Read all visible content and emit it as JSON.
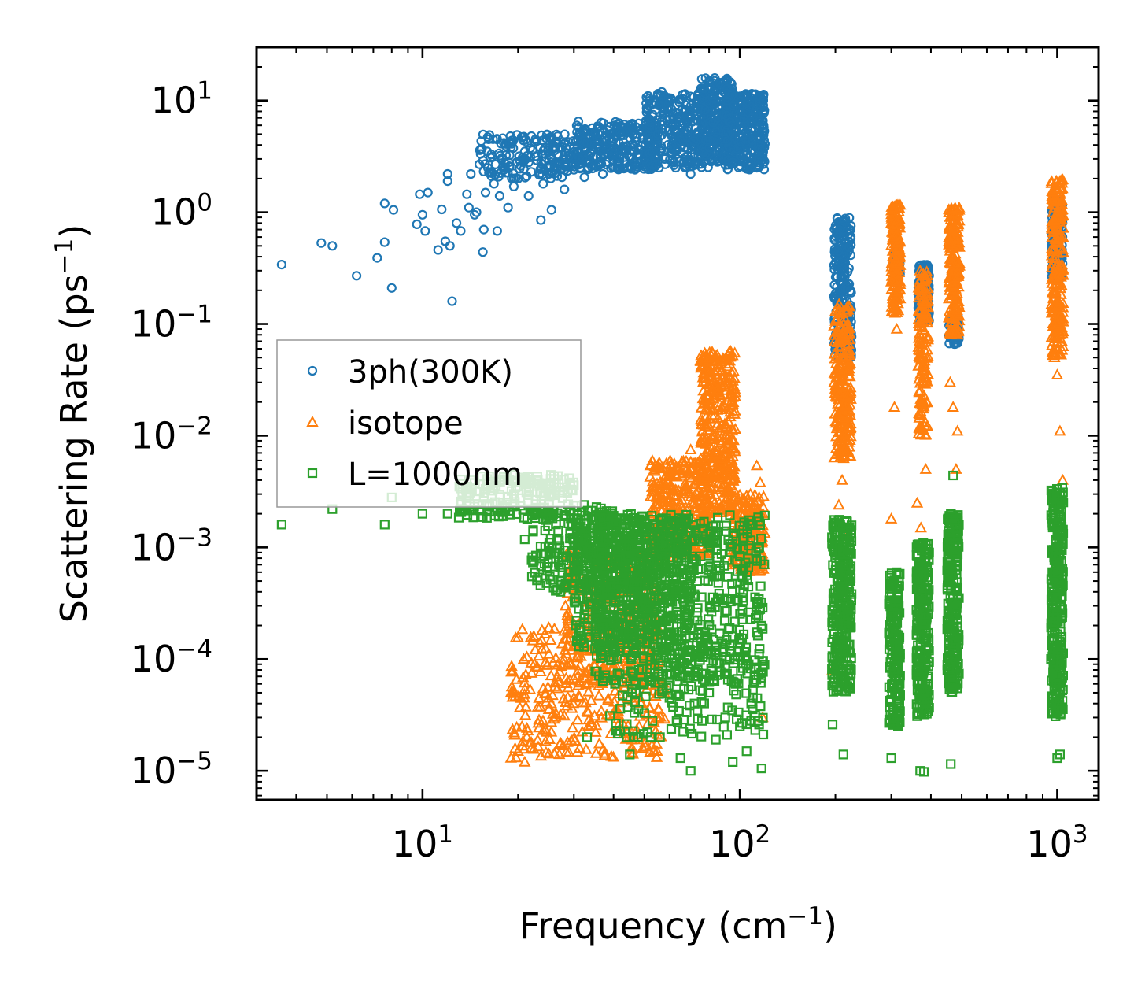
{
  "chart_data": {
    "type": "scatter",
    "title": "",
    "xlabel": "Frequency (cm",
    "xlabel_sup": "−1",
    "xlabel_end": ")",
    "ylabel": "Scattering Rate (ps",
    "ylabel_sup": "−1",
    "ylabel_end": ")",
    "xscale": "log",
    "yscale": "log",
    "xlim": [
      3.0,
      1350
    ],
    "ylim": [
      5.5e-06,
      30
    ],
    "x_ticks": [
      {
        "value": 10,
        "base": "10",
        "exp": "1"
      },
      {
        "value": 100,
        "base": "10",
        "exp": "2"
      },
      {
        "value": 1000,
        "base": "10",
        "exp": "3"
      }
    ],
    "y_ticks": [
      {
        "value": 10,
        "base": "10",
        "exp": "1"
      },
      {
        "value": 1,
        "base": "10",
        "exp": "0"
      },
      {
        "value": 0.1,
        "base": "10",
        "exp": "−1"
      },
      {
        "value": 0.01,
        "base": "10",
        "exp": "−2"
      },
      {
        "value": 0.001,
        "base": "10",
        "exp": "−3"
      },
      {
        "value": 0.0001,
        "base": "10",
        "exp": "−4"
      },
      {
        "value": 1e-05,
        "base": "10",
        "exp": "−5"
      }
    ],
    "legend_position": "center-left",
    "series": [
      {
        "name": "3ph(300K)",
        "marker": "circle",
        "color": "#1f77b4",
        "points": [
          [
            3.6,
            0.34
          ],
          [
            4.8,
            0.53
          ],
          [
            5.2,
            0.5
          ],
          [
            6.2,
            0.27
          ],
          [
            7.2,
            0.39
          ],
          [
            7.6,
            0.54
          ],
          [
            7.6,
            1.2
          ],
          [
            8.0,
            0.21
          ],
          [
            8.1,
            1.05
          ],
          [
            9.6,
            0.78
          ],
          [
            9.8,
            1.45
          ],
          [
            10.0,
            0.95
          ],
          [
            10.2,
            0.68
          ],
          [
            10.4,
            1.5
          ],
          [
            11.2,
            0.46
          ],
          [
            11.5,
            1.06
          ],
          [
            11.8,
            0.55
          ],
          [
            12.0,
            2.2
          ],
          [
            12.0,
            1.9
          ],
          [
            12.2,
            0.5
          ],
          [
            12.4,
            0.16
          ],
          [
            12.8,
            0.8
          ],
          [
            13.2,
            0.68
          ],
          [
            13.8,
            1.45
          ],
          [
            14.0,
            1.1
          ],
          [
            14.2,
            2.2
          ],
          [
            14.6,
            0.95
          ],
          [
            14.8,
            1.0
          ],
          [
            15.5,
            0.44
          ],
          [
            15.6,
            0.7
          ],
          [
            15.8,
            1.5
          ],
          [
            16.0,
            3.5
          ],
          [
            16.5,
            2.1
          ],
          [
            16.8,
            1.8
          ],
          [
            17.2,
            0.68
          ],
          [
            17.5,
            1.4
          ],
          [
            17.8,
            3.0
          ],
          [
            18.2,
            2.5
          ],
          [
            18.6,
            1.1
          ],
          [
            19.0,
            3.8
          ],
          [
            19.4,
            1.7
          ],
          [
            20.0,
            2.0
          ],
          [
            20.4,
            2.6
          ],
          [
            21.0,
            3.5
          ],
          [
            21.6,
            1.4
          ],
          [
            22.0,
            2.3
          ],
          [
            23.0,
            2.9
          ],
          [
            23.6,
            0.85
          ],
          [
            24.0,
            1.8
          ],
          [
            24.4,
            3.3
          ],
          [
            25.0,
            2.2
          ],
          [
            25.5,
            1.05
          ],
          [
            26.0,
            3.9
          ],
          [
            27.0,
            2.8
          ],
          [
            28.0,
            1.6
          ],
          [
            29.0,
            3.2
          ],
          [
            30.0,
            2.4
          ],
          [
            31.0,
            6.5
          ],
          [
            32.0,
            3.1
          ],
          [
            33.0,
            4.2
          ],
          [
            34.0,
            2.6
          ],
          [
            35.0,
            5.0
          ],
          [
            36.0,
            3.8
          ],
          [
            37.0,
            2.2
          ],
          [
            38.0,
            4.4
          ],
          [
            40.0,
            3.3
          ],
          [
            42.0,
            5.2
          ],
          [
            44.0,
            2.5
          ],
          [
            46.0,
            4.1
          ],
          [
            48.0,
            3.6
          ],
          [
            50.0,
            2.8
          ],
          [
            52.0,
            6.0
          ],
          [
            55.0,
            4.0
          ],
          [
            58.0,
            3.0
          ],
          [
            60.0,
            5.5
          ],
          [
            63.0,
            7.8
          ],
          [
            66.0,
            4.6
          ],
          [
            70.0,
            2.2
          ],
          [
            73.0,
            9.5
          ],
          [
            76.0,
            6.2
          ],
          [
            80.0,
            3.8
          ],
          [
            85.0,
            7.0
          ],
          [
            90.0,
            4.5
          ],
          [
            95.0,
            2.8
          ],
          [
            100.0,
            8.5
          ],
          [
            105.0,
            5.2
          ],
          [
            110.0,
            9.0
          ],
          [
            115.0,
            6.5
          ],
          [
            118.0,
            8.0
          ]
        ],
        "bands": [
          {
            "x": [
              15.0,
              33.0
            ],
            "y": [
              2.0,
              5.0
            ],
            "n": 180
          },
          {
            "x": [
              30.0,
              55.0
            ],
            "y": [
              2.4,
              6.5
            ],
            "n": 260
          },
          {
            "x": [
              50.0,
              80.0
            ],
            "y": [
              2.5,
              12.0
            ],
            "n": 320
          },
          {
            "x": [
              75.0,
              95.0
            ],
            "y": [
              2.8,
              16.0
            ],
            "n": 260
          },
          {
            "x": [
              90.0,
              120.0
            ],
            "y": [
              2.4,
              11.5
            ],
            "n": 300
          },
          {
            "x": [
              198.0,
              225.0
            ],
            "y": [
              0.05,
              0.9
            ],
            "n": 220
          },
          {
            "x": [
              305.0,
              320.0
            ],
            "y": [
              0.25,
              0.45
            ],
            "n": 70
          },
          {
            "x": [
              365.0,
              395.0
            ],
            "y": [
              0.1,
              0.34
            ],
            "n": 160
          },
          {
            "x": [
              455.0,
              490.0
            ],
            "y": [
              0.065,
              0.12
            ],
            "n": 60
          },
          {
            "x": [
              960.0,
              1040.0
            ],
            "y": [
              0.25,
              1.3
            ],
            "n": 160
          }
        ]
      },
      {
        "name": "isotope",
        "marker": "triangle",
        "color": "#ff7f0e",
        "points": [
          [
            19.0,
            1.3e-05
          ],
          [
            20.0,
            1.5e-05
          ],
          [
            21.0,
            1.2e-05
          ],
          [
            22.0,
            1.8e-05
          ],
          [
            24.0,
            2.3e-05
          ],
          [
            26.0,
            2.9e-05
          ],
          [
            28.0,
            3.1e-05
          ],
          [
            30.0,
            4.5e-05
          ],
          [
            33.0,
            3.4e-05
          ],
          [
            36.0,
            4.7e-05
          ],
          [
            41.0,
            3.5e-05
          ],
          [
            46.0,
            4.2e-05
          ],
          [
            52.0,
            3.6e-05
          ],
          [
            58.0,
            2.9e-05
          ],
          [
            54.0,
            0.0048
          ],
          [
            58.0,
            0.0038
          ],
          [
            63.0,
            0.0049
          ],
          [
            70.0,
            0.0075
          ],
          [
            77.0,
            0.0125
          ],
          [
            84.0,
            0.022
          ],
          [
            90.0,
            0.035
          ],
          [
            95.0,
            0.022
          ],
          [
            100.0,
            0.0017
          ],
          [
            108.0,
            0.003
          ],
          [
            113.0,
            0.0054
          ],
          [
            116.0,
            0.0038
          ],
          [
            118.0,
            3e-05
          ],
          [
            196.0,
            8e-05
          ],
          [
            205.0,
            0.0024
          ],
          [
            210.0,
            0.004
          ],
          [
            216.0,
            0.0012
          ],
          [
            300.0,
            0.0018
          ],
          [
            307.0,
            0.018
          ],
          [
            312.0,
            0.09
          ],
          [
            362.0,
            0.0025
          ],
          [
            372.0,
            0.0015
          ],
          [
            385.0,
            0.005
          ],
          [
            460.0,
            0.03
          ],
          [
            470.0,
            0.018
          ],
          [
            480.0,
            0.005
          ],
          [
            485.0,
            0.011
          ],
          [
            980.0,
            0.05
          ],
          [
            1000.0,
            0.035
          ],
          [
            1020.0,
            0.011
          ],
          [
            1040.0,
            0.004
          ]
        ],
        "bands": [
          {
            "x": [
              19.0,
              58.0
            ],
            "y": [
              1.3e-05,
              0.0002
            ],
            "n": 320
          },
          {
            "x": [
              28.0,
              55.0
            ],
            "y": [
              6e-05,
              0.0009
            ],
            "n": 260
          },
          {
            "x": [
              52.0,
              80.0
            ],
            "y": [
              0.0008,
              0.006
            ],
            "n": 320
          },
          {
            "x": [
              75.0,
              97.0
            ],
            "y": [
              0.002,
              0.058
            ],
            "n": 360
          },
          {
            "x": [
              95.0,
              120.0
            ],
            "y": [
              0.0006,
              0.003
            ],
            "n": 200
          },
          {
            "x": [
              198.0,
              224.0
            ],
            "y": [
              0.006,
              0.15
            ],
            "n": 220
          },
          {
            "x": [
              300.0,
              320.0
            ],
            "y": [
              0.12,
              1.2
            ],
            "n": 180
          },
          {
            "x": [
              365.0,
              392.0
            ],
            "y": [
              0.01,
              0.3
            ],
            "n": 150
          },
          {
            "x": [
              455.0,
              492.0
            ],
            "y": [
              0.08,
              1.1
            ],
            "n": 180
          },
          {
            "x": [
              960.0,
              1045.0
            ],
            "y": [
              0.05,
              2.0
            ],
            "n": 220
          }
        ]
      },
      {
        "name": "L=1000nm",
        "marker": "square",
        "color": "#2ca02c",
        "points": [
          [
            3.6,
            0.0016
          ],
          [
            5.2,
            0.0022
          ],
          [
            7.6,
            0.0016
          ],
          [
            8.0,
            0.0028
          ],
          [
            10.0,
            0.002
          ],
          [
            12.0,
            0.002
          ],
          [
            14.0,
            0.0029
          ],
          [
            16.0,
            0.0041
          ],
          [
            18.0,
            0.0019
          ],
          [
            21.0,
            0.00118
          ],
          [
            22.0,
            0.0038
          ],
          [
            25.0,
            0.0024
          ],
          [
            27.0,
            0.0031
          ],
          [
            30.0,
            0.0036
          ],
          [
            33.0,
            2e-05
          ],
          [
            34.0,
            0.0009
          ],
          [
            36.0,
            0.0004
          ],
          [
            39.0,
            3.1e-05
          ],
          [
            42.0,
            3.6e-05
          ],
          [
            44.0,
            2e-05
          ],
          [
            45.0,
            1.4e-05
          ],
          [
            47.0,
            5e-05
          ],
          [
            50.0,
            3.3e-05
          ],
          [
            53.0,
            2.8e-05
          ],
          [
            56.0,
            2e-05
          ],
          [
            60.0,
            4.5e-05
          ],
          [
            65.0,
            1.3e-05
          ],
          [
            70.0,
            1e-05
          ],
          [
            72.0,
            4e-05
          ],
          [
            76.0,
            2.8e-05
          ],
          [
            80.0,
            5e-05
          ],
          [
            84.0,
            1.9e-05
          ],
          [
            90.0,
            3e-05
          ],
          [
            95.0,
            1.2e-05
          ],
          [
            100.0,
            2.5e-05
          ],
          [
            105.0,
            1.5e-05
          ],
          [
            110.0,
            4.5e-05
          ],
          [
            115.0,
            2.6e-05
          ],
          [
            117.0,
            1.05e-05
          ],
          [
            196.0,
            2.6e-05
          ],
          [
            212.0,
            1.4e-05
          ],
          [
            300.0,
            1.3e-05
          ],
          [
            370.0,
            1e-05
          ],
          [
            380.0,
            9.8e-06
          ],
          [
            462.0,
            1.15e-05
          ],
          [
            470.0,
            0.0044
          ],
          [
            1000.0,
            1.3e-05
          ],
          [
            1020.0,
            1.4e-05
          ]
        ],
        "bands": [
          {
            "x": [
              13.0,
              30.0
            ],
            "y": [
              0.0018,
              0.0045
            ],
            "n": 180
          },
          {
            "x": [
              22.0,
              40.0
            ],
            "y": [
              0.0004,
              0.0025
            ],
            "n": 200
          },
          {
            "x": [
              30.0,
              70.0
            ],
            "y": [
              0.00012,
              0.002
            ],
            "n": 520
          },
          {
            "x": [
              35.0,
              120.0
            ],
            "y": [
              6e-05,
              0.002
            ],
            "n": 700
          },
          {
            "x": [
              40.0,
              120.0
            ],
            "y": [
              2e-05,
              0.00012
            ],
            "n": 120
          },
          {
            "x": [
              195.0,
              225.0
            ],
            "y": [
              5e-05,
              0.0018
            ],
            "n": 300
          },
          {
            "x": [
              295.0,
              320.0
            ],
            "y": [
              2.5e-05,
              0.0006
            ],
            "n": 200
          },
          {
            "x": [
              360.0,
              395.0
            ],
            "y": [
              3e-05,
              0.0011
            ],
            "n": 240
          },
          {
            "x": [
              450.0,
              490.0
            ],
            "y": [
              5e-05,
              0.002
            ],
            "n": 240
          },
          {
            "x": [
              955.0,
              1045.0
            ],
            "y": [
              3e-05,
              0.0035
            ],
            "n": 320
          }
        ]
      }
    ]
  }
}
